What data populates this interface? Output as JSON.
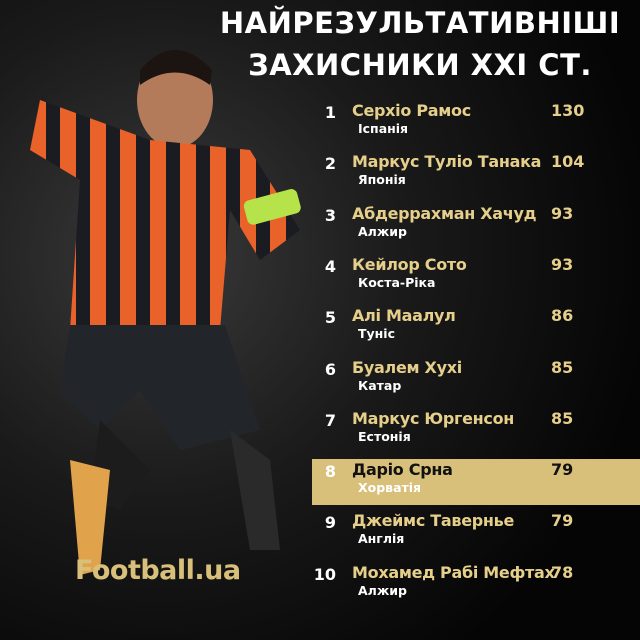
{
  "title": {
    "line1": "НАЙРЕЗУЛЬТАТИВНІШІ",
    "line2": "ЗАХИСНИКИ XXI СТ."
  },
  "highlight_color": "#d9c07a",
  "accent_color": "#e6cf8a",
  "rows": [
    {
      "rank": "1",
      "name": "Серхіо Рамос",
      "country": "Іспанія",
      "goals": "130"
    },
    {
      "rank": "2",
      "name": "Маркус Туліо Танака",
      "country": "Японія",
      "goals": "104"
    },
    {
      "rank": "3",
      "name": "Абдеррахман Хачуд",
      "country": "Алжир",
      "goals": "93"
    },
    {
      "rank": "4",
      "name": "Кейлор Сото",
      "country": "Коста-Ріка",
      "goals": "93"
    },
    {
      "rank": "5",
      "name": "Алі Маалул",
      "country": "Туніс",
      "goals": "86"
    },
    {
      "rank": "6",
      "name": "Буалем Хухі",
      "country": "Катар",
      "goals": "85"
    },
    {
      "rank": "7",
      "name": "Маркус Юргенсон",
      "country": "Естонія",
      "goals": "85"
    },
    {
      "rank": "8",
      "name": "Даріо Срна",
      "country": "Хорватія",
      "goals": "79",
      "highlighted": true
    },
    {
      "rank": "9",
      "name": "Джеймс Тавернье",
      "country": "Англія",
      "goals": "79"
    },
    {
      "rank": "10",
      "name": "Мохамед Рабі Мефтах",
      "country": "Алжир",
      "goals": "78"
    }
  ],
  "logo": "Football.ua"
}
